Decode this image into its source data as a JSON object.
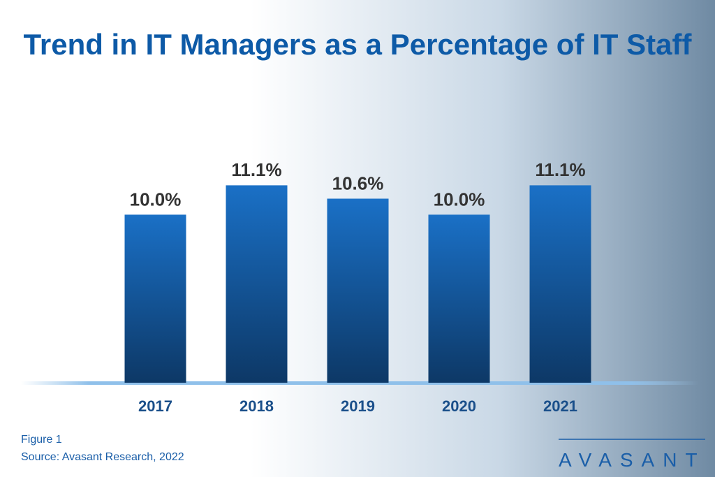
{
  "chart_data": {
    "type": "bar",
    "title": "Trend in IT Managers as a Percentage of IT Staff",
    "categories": [
      "2017",
      "2018",
      "2019",
      "2020",
      "2021"
    ],
    "values": [
      10.0,
      11.1,
      10.6,
      10.0,
      11.1
    ],
    "value_labels": [
      "10.0%",
      "11.1%",
      "10.6%",
      "10.0%",
      "11.1%"
    ],
    "color": "#1669bd",
    "ylim": [
      3.7,
      12
    ]
  },
  "caption": "Figure 1",
  "source": "Source: Avasant Research, 2022",
  "logo": "AVASANT"
}
